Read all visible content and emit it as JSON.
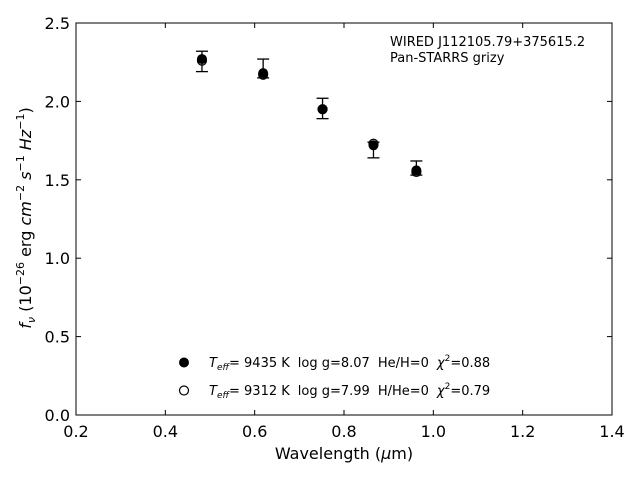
{
  "chart_data": {
    "type": "scatter",
    "annotation": {
      "line1": "WIRED J112105.79+375615.2",
      "line2": "Pan-STARRS grizy"
    },
    "xlabel": {
      "main": "Wavelength (",
      "unit": "μ",
      "tail": "m)"
    },
    "ylabel": {
      "prefix": "f",
      "sub": "ν",
      "mid": " (10",
      "exp1": "−26",
      "rest1": " erg ",
      "cm": "cm",
      "exp2": "−2",
      "s": " s",
      "exp3": "−1",
      "hz": " Hz",
      "exp4": "−1",
      "close": ")"
    },
    "xlim": [
      0.2,
      1.4
    ],
    "ylim": [
      0.0,
      2.5
    ],
    "xticks": [
      0.2,
      0.4,
      0.6,
      0.8,
      1.0,
      1.2,
      1.4
    ],
    "xtick_labels": [
      "0.2",
      "0.4",
      "0.6",
      "0.8",
      "1.0",
      "1.2",
      "1.4"
    ],
    "yticks": [
      0.0,
      0.5,
      1.0,
      1.5,
      2.0,
      2.5
    ],
    "ytick_labels": [
      "0.0",
      "0.5",
      "1.0",
      "1.5",
      "2.0",
      "2.5"
    ],
    "grid": false,
    "observed": [
      {
        "x": 0.482,
        "y": 2.26,
        "ylo": 2.19,
        "yhi": 2.32
      },
      {
        "x": 0.619,
        "y": 2.21,
        "ylo": 2.15,
        "yhi": 2.27
      },
      {
        "x": 0.752,
        "y": 1.96,
        "ylo": 1.89,
        "yhi": 2.02
      },
      {
        "x": 0.866,
        "y": 1.69,
        "ylo": 1.64,
        "yhi": 1.74
      },
      {
        "x": 0.962,
        "y": 1.57,
        "ylo": 1.53,
        "yhi": 1.62
      }
    ],
    "series": [
      {
        "marker": "filled",
        "x": [
          0.482,
          0.619,
          0.752,
          0.866,
          0.962
        ],
        "y": [
          2.27,
          2.18,
          1.95,
          1.72,
          1.56
        ]
      },
      {
        "marker": "open",
        "x": [
          0.482,
          0.619,
          0.752,
          0.866,
          0.962
        ],
        "y": [
          2.26,
          2.17,
          1.95,
          1.73,
          1.55
        ]
      }
    ],
    "legend": {
      "placement": "lower-center",
      "entries": [
        {
          "marker": "filled",
          "T": "T",
          "eff": "eff",
          "teff": "=  9435 K",
          "logg": "log g=8.07",
          "comp": "He/H=0",
          "chi": "χ",
          "chi_exp": "2",
          "chi_val": "=0.88"
        },
        {
          "marker": "open",
          "T": "T",
          "eff": "eff",
          "teff": "=  9312 K",
          "logg": "log g=7.99",
          "comp": "H/He=0",
          "chi": "χ",
          "chi_exp": "2",
          "chi_val": "=0.79"
        }
      ]
    }
  }
}
